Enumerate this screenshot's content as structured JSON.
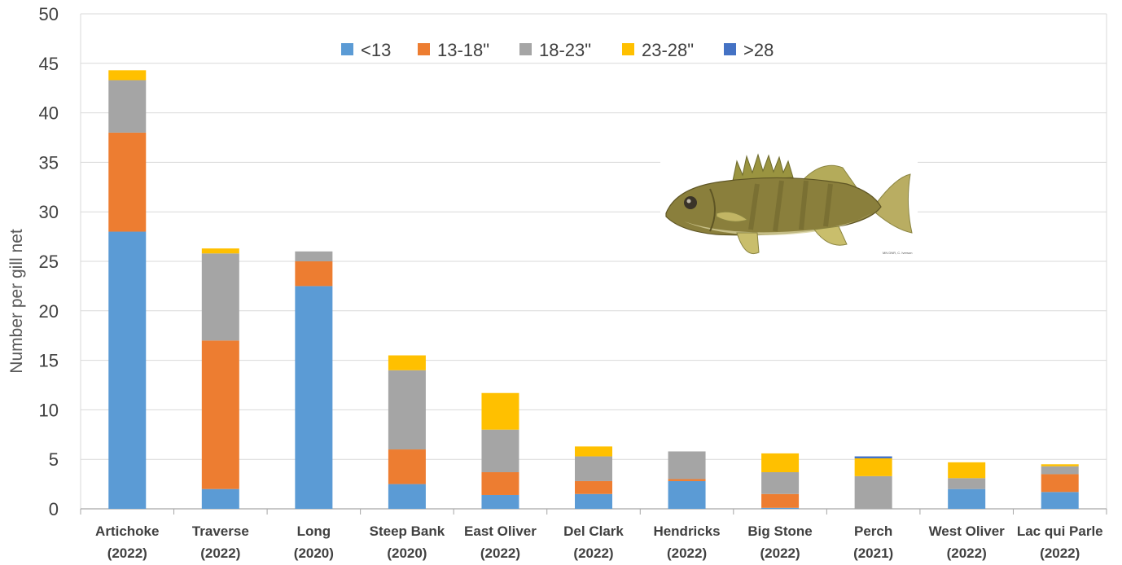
{
  "chart_data": {
    "type": "bar",
    "stacked": true,
    "title": "",
    "xlabel": "",
    "ylabel": "Number per gill net",
    "ylim": [
      0,
      50
    ],
    "yticks": [
      0,
      5,
      10,
      15,
      20,
      25,
      30,
      35,
      40,
      45,
      50
    ],
    "grid": true,
    "legend_position": "top-center",
    "categories": [
      [
        "Artichoke",
        "(2022)"
      ],
      [
        "Traverse",
        "(2022)"
      ],
      [
        "Long",
        "(2020)"
      ],
      [
        "Steep Bank",
        "(2020)"
      ],
      [
        "East Oliver",
        "(2022)"
      ],
      [
        "Del Clark",
        "(2022)"
      ],
      [
        "Hendricks",
        "(2022)"
      ],
      [
        "Big Stone",
        "(2022)"
      ],
      [
        "Perch",
        "(2021)"
      ],
      [
        "West Oliver",
        "(2022)"
      ],
      [
        "Lac qui Parle",
        "(2022)"
      ]
    ],
    "series": [
      {
        "name": "<13",
        "color": "#5B9BD5",
        "values": [
          28,
          2,
          22.5,
          2.5,
          1.4,
          1.5,
          2.8,
          0.1,
          0,
          2,
          1.7
        ]
      },
      {
        "name": "13-18\"",
        "color": "#ED7D31",
        "values": [
          10,
          15,
          2.5,
          3.5,
          2.3,
          1.3,
          0.2,
          1.4,
          0,
          0,
          1.8
        ]
      },
      {
        "name": "18-23\"",
        "color": "#A5A5A5",
        "values": [
          5.3,
          8.8,
          1,
          8,
          4.3,
          2.5,
          2.8,
          2.2,
          3.3,
          1.1,
          0.8
        ]
      },
      {
        "name": "23-28\"",
        "color": "#FFC000",
        "values": [
          1,
          0.5,
          0,
          1.5,
          3.7,
          1,
          0,
          1.9,
          1.8,
          1.6,
          0.2
        ]
      },
      {
        "name": ">28",
        "color": "#4472C4",
        "values": [
          0,
          0,
          0,
          0,
          0,
          0,
          0,
          0,
          0.2,
          0,
          0
        ]
      }
    ],
    "image": {
      "subject": "walleye-fish-illustration",
      "caption": "MN DNR, C. Iverson"
    }
  }
}
